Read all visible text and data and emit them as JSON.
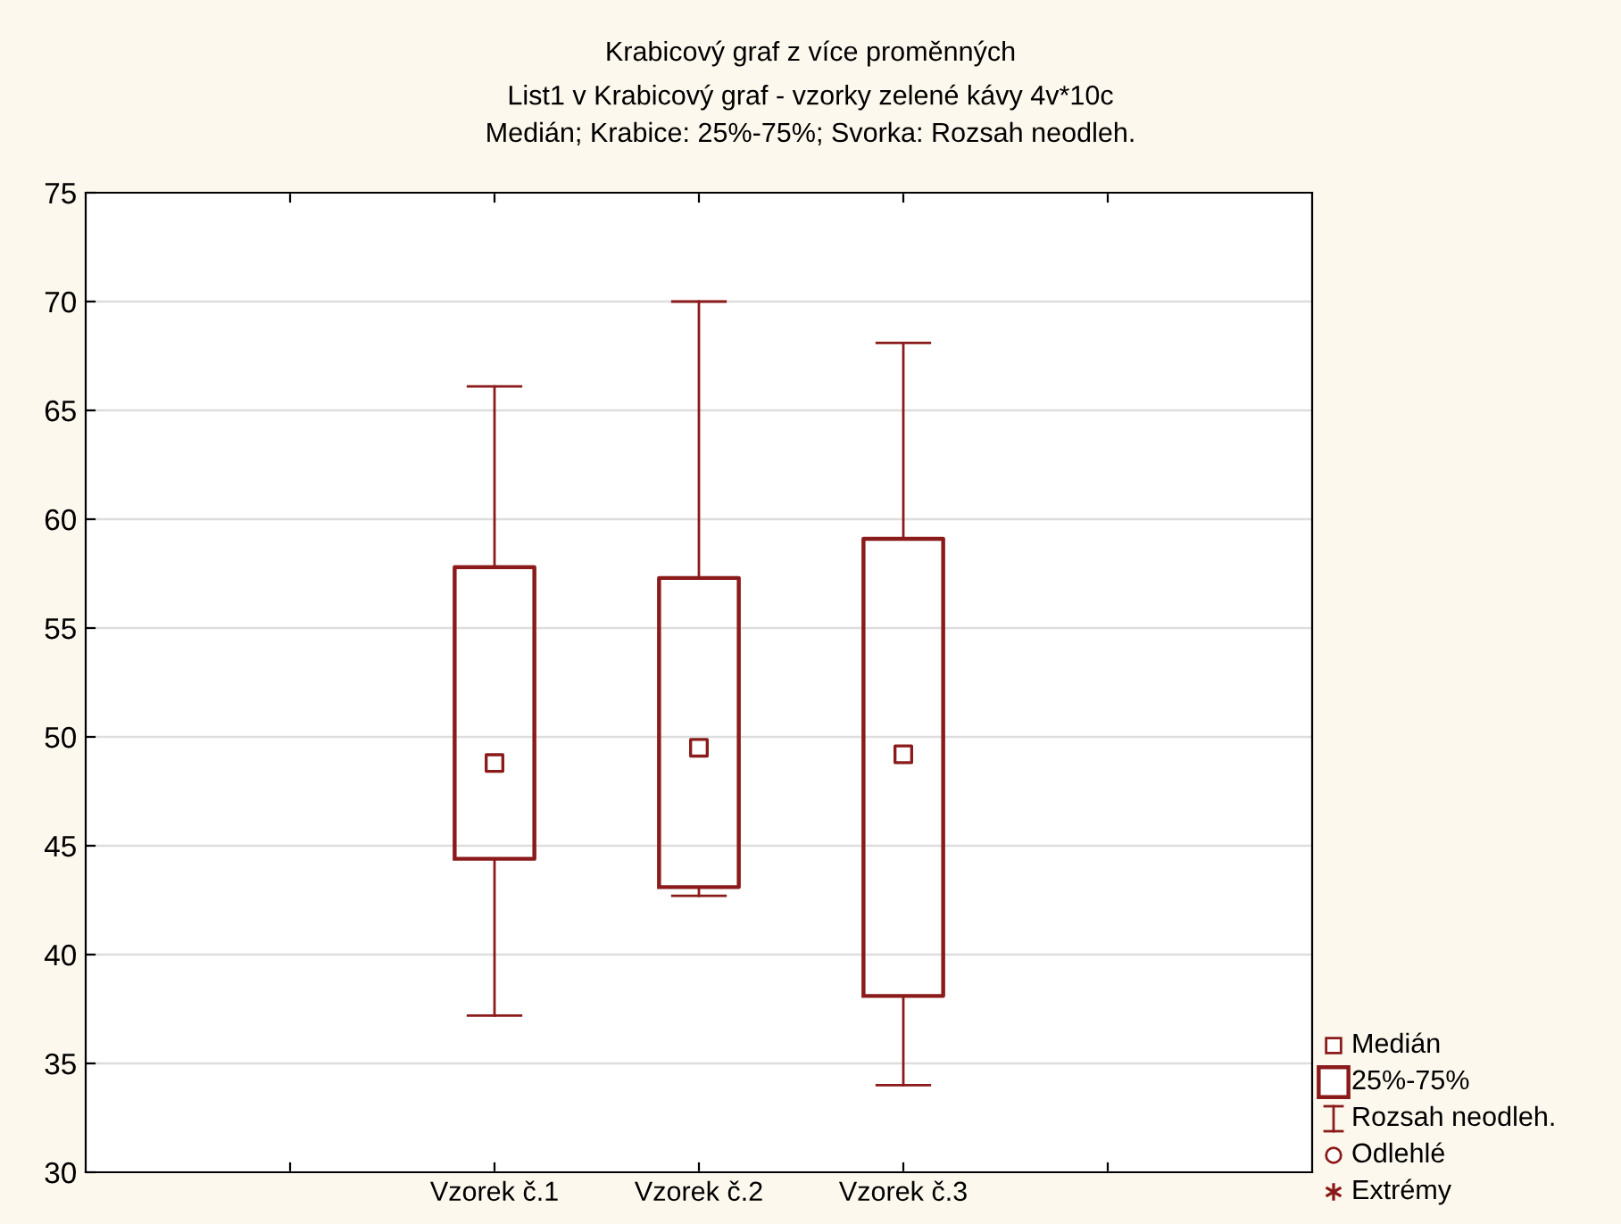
{
  "chart_data": {
    "type": "box",
    "title": "Krabicový graf z více proměnných",
    "subtitle": "List1 v Krabicový graf - vzorky zelené kávy 4v*10c\nMedián; Krabice: 25%-75%; Svorka: Rozsah neodleh.",
    "categories": [
      null,
      "Vzorek č.1",
      "Vzorek č.2",
      "Vzorek č.3",
      null
    ],
    "boxes": [
      null,
      {
        "low": 37.2,
        "q1": 44.4,
        "median": 48.8,
        "q3": 57.8,
        "high": 66.1
      },
      {
        "low": 42.7,
        "q1": 43.1,
        "median": 49.5,
        "q3": 57.3,
        "high": 70.0
      },
      {
        "low": 34.0,
        "q1": 38.1,
        "median": 49.2,
        "q3": 59.1,
        "high": 68.1
      },
      null
    ],
    "color": "#8b1a1a",
    "ylim": [
      30,
      75
    ],
    "yticks": [
      30,
      35,
      40,
      45,
      50,
      55,
      60,
      65,
      70,
      75
    ],
    "grid": "y",
    "marker": "square",
    "annotations": [
      "Medián",
      "25%-75%",
      "Rozsah neodleh.",
      "Odlehlé",
      "Extrémy"
    ]
  }
}
